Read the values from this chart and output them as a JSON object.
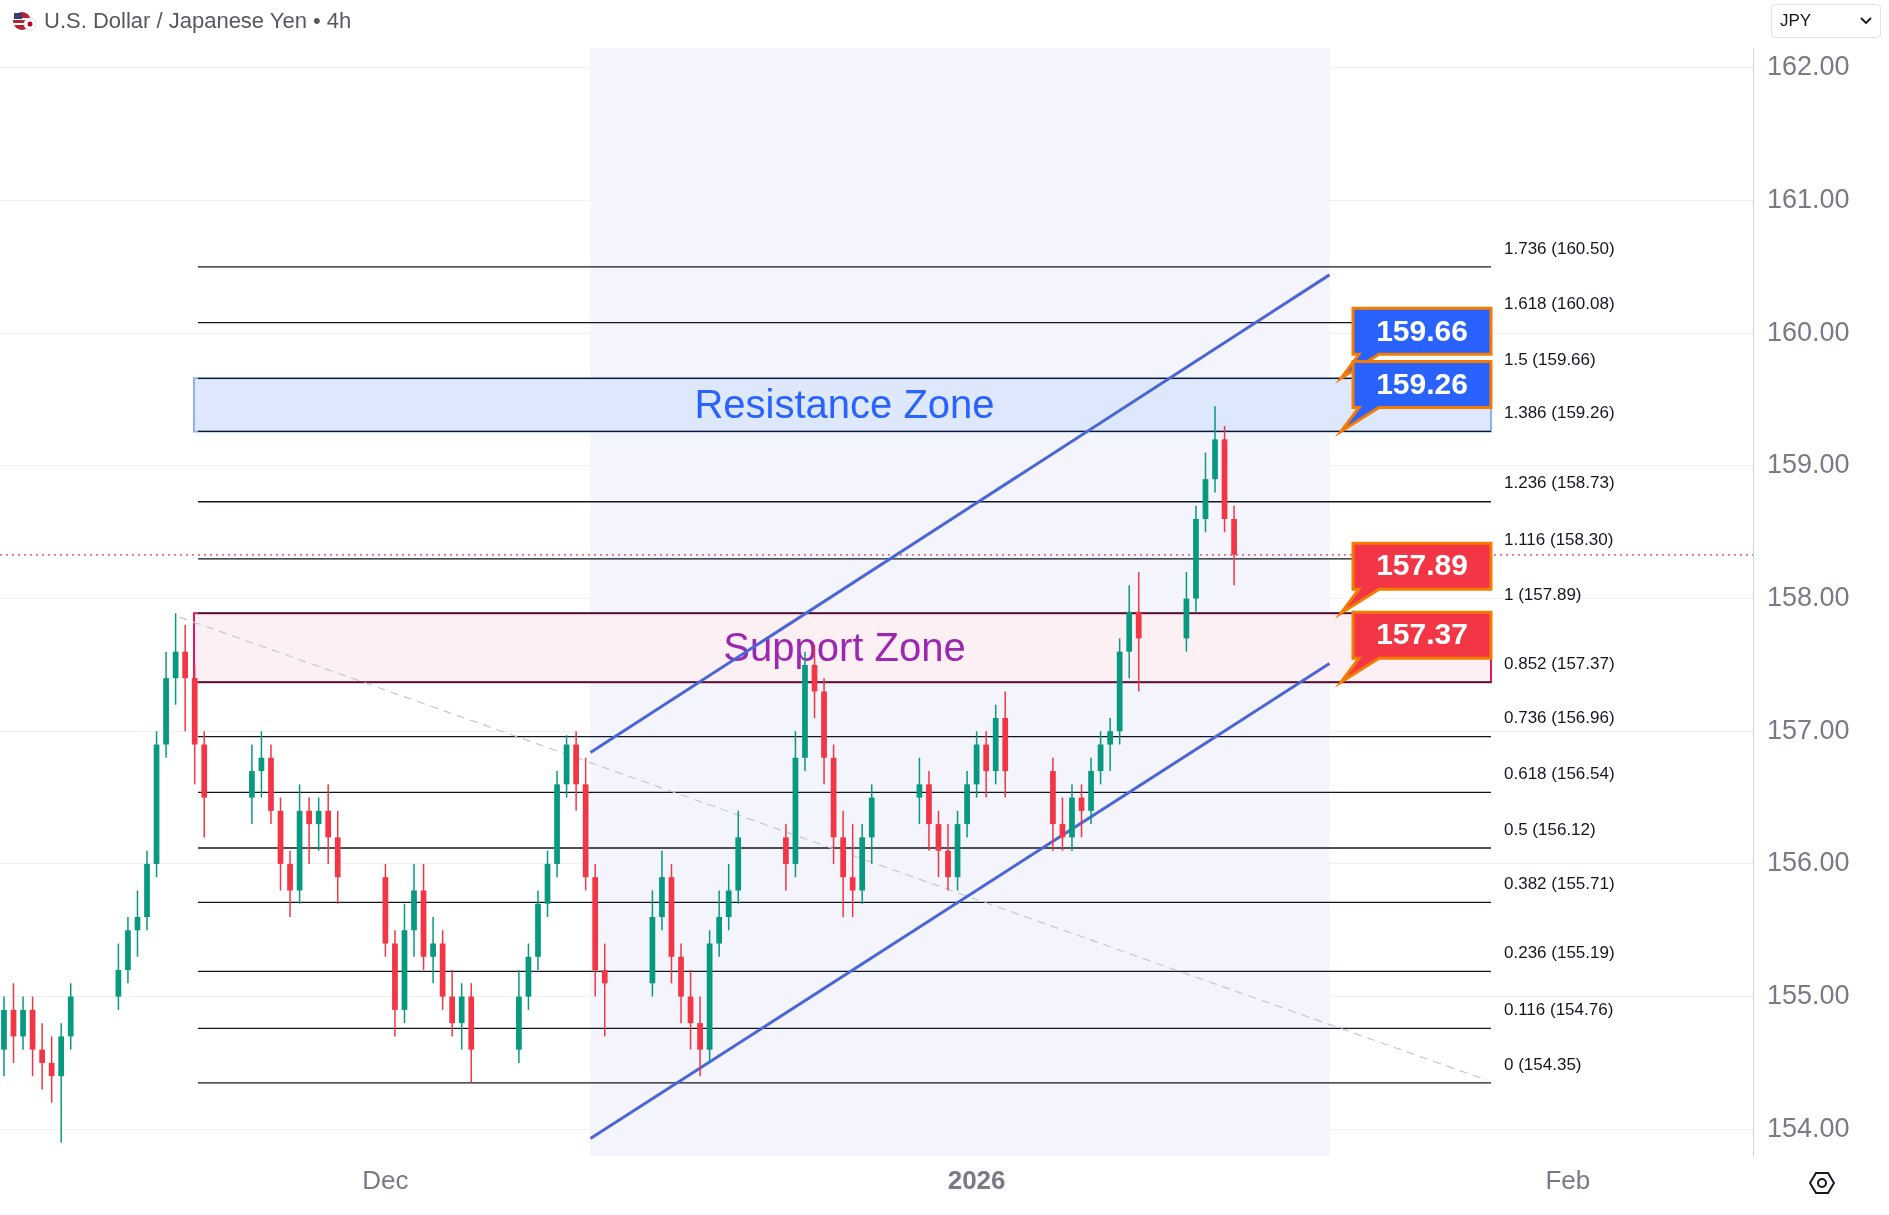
{
  "chart_data": {
    "type": "candlestick",
    "title": "U.S. Dollar / Japanese Yen • 4h",
    "x": [
      "2025-11-11T00:00",
      "2025-11-11T12:00",
      "2025-11-12T00:00",
      "2025-11-12T12:00",
      "2025-11-13T00:00",
      "2025-11-13T12:00",
      "2025-11-14T00:00",
      "2025-11-14T12:00",
      "2025-11-17T00:00",
      "2025-11-17T12:00",
      "2025-11-18T00:00",
      "2025-11-18T12:00",
      "2025-11-19T00:00",
      "2025-11-19T12:00",
      "2025-11-20T00:00",
      "2025-11-20T12:00",
      "2025-11-21T00:00",
      "2025-11-21T12:00",
      "2025-11-24T00:00",
      "2025-11-24T12:00",
      "2025-11-25T00:00",
      "2025-11-25T12:00",
      "2025-11-26T00:00",
      "2025-11-26T12:00",
      "2025-11-27T00:00",
      "2025-11-27T12:00",
      "2025-11-28T00:00",
      "2025-11-28T12:00",
      "2025-12-01T00:00",
      "2025-12-01T12:00",
      "2025-12-02T00:00",
      "2025-12-02T12:00",
      "2025-12-03T00:00",
      "2025-12-03T12:00",
      "2025-12-04T00:00",
      "2025-12-04T12:00",
      "2025-12-05T00:00",
      "2025-12-05T12:00",
      "2025-12-08T00:00",
      "2025-12-08T12:00",
      "2025-12-09T00:00",
      "2025-12-09T12:00",
      "2025-12-10T00:00",
      "2025-12-10T12:00",
      "2025-12-11T00:00",
      "2025-12-11T12:00",
      "2025-12-12T00:00",
      "2025-12-12T12:00",
      "2025-12-15T00:00",
      "2025-12-15T12:00",
      "2025-12-16T00:00",
      "2025-12-16T12:00",
      "2025-12-17T00:00",
      "2025-12-17T12:00",
      "2025-12-18T00:00",
      "2025-12-18T12:00",
      "2025-12-19T00:00",
      "2025-12-19T12:00",
      "2025-12-22T00:00",
      "2025-12-22T12:00",
      "2025-12-23T00:00",
      "2025-12-23T12:00",
      "2025-12-24T00:00",
      "2025-12-24T12:00",
      "2025-12-25T00:00",
      "2025-12-25T12:00",
      "2025-12-26T00:00",
      "2025-12-26T12:00",
      "2025-12-29T00:00",
      "2025-12-29T12:00",
      "2025-12-30T00:00",
      "2025-12-30T12:00",
      "2025-12-31T00:00",
      "2025-12-31T12:00",
      "2026-01-01T00:00",
      "2026-01-01T12:00",
      "2026-01-02T00:00",
      "2026-01-02T12:00",
      "2026-01-05T00:00",
      "2026-01-05T12:00",
      "2026-01-06T00:00",
      "2026-01-06T12:00",
      "2026-01-07T00:00",
      "2026-01-07T12:00",
      "2026-01-08T00:00",
      "2026-01-08T12:00",
      "2026-01-09T00:00",
      "2026-01-09T12:00",
      "2026-01-12T00:00",
      "2026-01-12T12:00",
      "2026-01-13T00:00",
      "2026-01-13T12:00",
      "2026-01-14T00:00",
      "2026-01-14T12:00"
    ],
    "ohlc": [
      [
        154.6,
        155.0,
        154.4,
        154.9
      ],
      [
        154.9,
        155.1,
        154.5,
        154.7
      ],
      [
        154.7,
        155.0,
        154.6,
        154.9
      ],
      [
        154.9,
        155.0,
        154.4,
        154.6
      ],
      [
        154.6,
        154.8,
        154.3,
        154.5
      ],
      [
        154.5,
        154.7,
        154.2,
        154.4
      ],
      [
        154.4,
        154.8,
        153.9,
        154.7
      ],
      [
        154.7,
        155.1,
        154.6,
        155.0
      ],
      [
        155.0,
        155.4,
        154.9,
        155.2
      ],
      [
        155.2,
        155.6,
        155.1,
        155.5
      ],
      [
        155.5,
        155.8,
        155.3,
        155.6
      ],
      [
        155.6,
        156.1,
        155.5,
        156.0
      ],
      [
        156.0,
        157.0,
        155.9,
        156.9
      ],
      [
        156.9,
        157.6,
        156.8,
        157.4
      ],
      [
        157.4,
        157.89,
        157.2,
        157.6
      ],
      [
        157.6,
        157.8,
        157.0,
        157.4
      ],
      [
        157.4,
        157.5,
        156.6,
        156.9
      ],
      [
        156.9,
        157.0,
        156.2,
        156.5
      ],
      [
        156.5,
        156.9,
        156.3,
        156.7
      ],
      [
        156.7,
        157.0,
        156.5,
        156.8
      ],
      [
        156.8,
        156.9,
        156.3,
        156.4
      ],
      [
        156.4,
        156.5,
        155.8,
        156.0
      ],
      [
        156.0,
        156.1,
        155.6,
        155.8
      ],
      [
        155.8,
        156.6,
        155.7,
        156.4
      ],
      [
        156.4,
        156.5,
        156.0,
        156.3
      ],
      [
        156.3,
        156.5,
        156.1,
        156.4
      ],
      [
        156.4,
        156.6,
        156.0,
        156.2
      ],
      [
        156.2,
        156.4,
        155.7,
        155.9
      ],
      [
        155.9,
        156.0,
        155.3,
        155.4
      ],
      [
        155.4,
        155.5,
        154.7,
        154.9
      ],
      [
        154.9,
        155.7,
        154.8,
        155.5
      ],
      [
        155.5,
        156.0,
        155.3,
        155.8
      ],
      [
        155.8,
        156.0,
        155.2,
        155.3
      ],
      [
        155.3,
        155.6,
        155.1,
        155.4
      ],
      [
        155.4,
        155.5,
        154.9,
        155.0
      ],
      [
        155.0,
        155.2,
        154.7,
        154.8
      ],
      [
        154.8,
        155.1,
        154.6,
        155.0
      ],
      [
        155.0,
        155.1,
        154.35,
        154.6
      ],
      [
        154.6,
        155.2,
        154.5,
        155.0
      ],
      [
        155.0,
        155.4,
        154.9,
        155.3
      ],
      [
        155.3,
        155.8,
        155.2,
        155.7
      ],
      [
        155.7,
        156.1,
        155.6,
        156.0
      ],
      [
        156.0,
        156.7,
        155.9,
        156.6
      ],
      [
        156.6,
        156.97,
        156.5,
        156.9
      ],
      [
        156.9,
        157.0,
        156.4,
        156.6
      ],
      [
        156.6,
        156.8,
        155.8,
        155.9
      ],
      [
        155.9,
        156.0,
        155.0,
        155.2
      ],
      [
        155.2,
        155.4,
        154.7,
        155.1
      ],
      [
        155.1,
        155.8,
        155.0,
        155.6
      ],
      [
        155.6,
        156.1,
        155.5,
        155.9
      ],
      [
        155.9,
        156.0,
        155.1,
        155.3
      ],
      [
        155.3,
        155.4,
        154.8,
        155.0
      ],
      [
        155.0,
        155.2,
        154.6,
        154.8
      ],
      [
        154.8,
        155.0,
        154.4,
        154.6
      ],
      [
        154.6,
        155.5,
        154.5,
        155.4
      ],
      [
        155.4,
        155.8,
        155.3,
        155.6
      ],
      [
        155.6,
        156.0,
        155.5,
        155.8
      ],
      [
        155.8,
        156.4,
        155.7,
        156.2
      ],
      [
        156.2,
        156.3,
        155.8,
        156.0
      ],
      [
        156.0,
        157.0,
        155.9,
        156.8
      ],
      [
        156.8,
        157.6,
        156.7,
        157.5
      ],
      [
        157.5,
        157.65,
        157.1,
        157.3
      ],
      [
        157.3,
        157.4,
        156.6,
        156.8
      ],
      [
        156.8,
        156.9,
        156.0,
        156.2
      ],
      [
        156.2,
        156.4,
        155.6,
        155.9
      ],
      [
        155.9,
        156.3,
        155.6,
        155.8
      ],
      [
        155.8,
        156.3,
        155.7,
        156.2
      ],
      [
        156.2,
        156.6,
        156.0,
        156.5
      ],
      [
        156.5,
        156.8,
        156.3,
        156.6
      ],
      [
        156.6,
        156.7,
        156.1,
        156.3
      ],
      [
        156.3,
        156.4,
        155.9,
        156.1
      ],
      [
        156.1,
        156.3,
        155.8,
        155.9
      ],
      [
        155.9,
        156.4,
        155.8,
        156.3
      ],
      [
        156.3,
        156.7,
        156.2,
        156.6
      ],
      [
        156.6,
        157.0,
        156.5,
        156.9
      ],
      [
        156.9,
        157.0,
        156.5,
        156.7
      ],
      [
        156.7,
        157.2,
        156.6,
        157.1
      ],
      [
        157.1,
        157.3,
        156.5,
        156.7
      ],
      [
        156.7,
        156.8,
        156.1,
        156.3
      ],
      [
        156.3,
        156.5,
        156.1,
        156.2
      ],
      [
        156.2,
        156.6,
        156.1,
        156.5
      ],
      [
        156.5,
        156.6,
        156.2,
        156.4
      ],
      [
        156.4,
        156.8,
        156.3,
        156.7
      ],
      [
        156.7,
        157.0,
        156.6,
        156.9
      ],
      [
        156.9,
        157.1,
        156.7,
        157.0
      ],
      [
        157.0,
        157.7,
        156.9,
        157.6
      ],
      [
        157.6,
        158.1,
        157.4,
        157.9
      ],
      [
        157.9,
        158.2,
        157.3,
        157.7
      ],
      [
        157.7,
        158.2,
        157.6,
        158.0
      ],
      [
        158.0,
        158.7,
        157.9,
        158.6
      ],
      [
        158.6,
        159.1,
        158.5,
        158.9
      ],
      [
        158.9,
        159.45,
        158.8,
        159.2
      ],
      [
        159.2,
        159.3,
        158.5,
        158.6
      ],
      [
        158.6,
        158.7,
        158.1,
        158.33
      ]
    ],
    "colors": [
      "#089981",
      "#f23645",
      "#089981",
      "#f23645",
      "#f23645",
      "#f23645",
      "#089981",
      "#089981",
      "#089981",
      "#089981",
      "#089981",
      "#089981",
      "#089981",
      "#089981",
      "#089981",
      "#f23645",
      "#f23645",
      "#f23645",
      "#089981",
      "#089981",
      "#f23645",
      "#f23645",
      "#f23645",
      "#089981",
      "#f23645",
      "#089981",
      "#f23645",
      "#f23645",
      "#f23645",
      "#f23645",
      "#089981",
      "#089981",
      "#f23645",
      "#089981",
      "#f23645",
      "#f23645",
      "#089981",
      "#f23645",
      "#089981",
      "#089981",
      "#089981",
      "#089981",
      "#089981",
      "#089981",
      "#f23645",
      "#f23645",
      "#f23645",
      "#f23645",
      "#089981",
      "#089981",
      "#f23645",
      "#f23645",
      "#f23645",
      "#f23645",
      "#089981",
      "#089981",
      "#089981",
      "#089981",
      "#f23645",
      "#089981",
      "#089981",
      "#f23645",
      "#f23645",
      "#f23645",
      "#f23645",
      "#f23645",
      "#089981",
      "#089981",
      "#089981",
      "#f23645",
      "#f23645",
      "#f23645",
      "#089981",
      "#089981",
      "#089981",
      "#f23645",
      "#089981",
      "#f23645",
      "#f23645",
      "#f23645",
      "#089981",
      "#f23645",
      "#089981",
      "#089981",
      "#089981",
      "#089981",
      "#089981",
      "#f23645",
      "#089981",
      "#089981",
      "#089981",
      "#089981",
      "#f23645",
      "#f23645"
    ],
    "series": [
      {
        "type": "line",
        "color": "#4a66d6",
        "x": [
          "2025-12-11T18:00",
          "2026-01-19T12:00"
        ],
        "values": [
          156.84,
          160.44
        ]
      },
      {
        "type": "line",
        "color": "#4a66d6",
        "x": [
          "2025-12-11T18:00",
          "2026-01-19T12:00"
        ],
        "values": [
          153.93,
          157.51
        ]
      },
      {
        "type": "line",
        "color": "#c8c8c8",
        "line_style": "dashed",
        "x": [
          "2025-11-20T05:00",
          "2026-01-27T18:00"
        ],
        "values": [
          157.86,
          154.37
        ]
      }
    ],
    "xlim": [
      "2025-11-10T19:00",
      "2026-02-10T17:00"
    ],
    "xticks": [
      {
        "value": "2025-12-01",
        "label": "Dec"
      },
      {
        "value": "2026-01-01",
        "label": "2026"
      },
      {
        "value": "2026-02-01",
        "label": "Feb"
      }
    ],
    "ylim": [
      153.8,
      162.15
    ],
    "yticks": [
      {
        "value": 154,
        "label": "154.00"
      },
      {
        "value": 155,
        "label": "155.00"
      },
      {
        "value": 156,
        "label": "156.00"
      },
      {
        "value": 157,
        "label": "157.00"
      },
      {
        "value": 158,
        "label": "158.00"
      },
      {
        "value": 159,
        "label": "159.00"
      },
      {
        "value": 160,
        "label": "160.00"
      },
      {
        "value": 161,
        "label": "161.00"
      },
      {
        "value": 162,
        "label": "162.00"
      }
    ],
    "grid": "y",
    "legend": false,
    "bands": [
      {
        "axis": "x",
        "from": "2025-12-11T18:00",
        "to": "2026-01-19T12:00",
        "color": "#f4f4fc"
      },
      {
        "axis": "y",
        "from": 159.26,
        "to": 159.66,
        "label": "Resistance Zone",
        "color": "#dde8fc"
      },
      {
        "axis": "y",
        "from": 157.37,
        "to": 157.89,
        "label": "Support Zone",
        "color": "#fcf0f5"
      }
    ],
    "ref_lines": [
      {
        "axis": "y",
        "value": 160.5,
        "label": "1.736 (160.50)",
        "color": "#131722"
      },
      {
        "axis": "y",
        "value": 160.08,
        "label": "1.618 (160.08)",
        "color": "#131722"
      },
      {
        "axis": "y",
        "value": 159.66,
        "label": "1.5 (159.66)",
        "color": "#131722"
      },
      {
        "axis": "y",
        "value": 159.26,
        "label": "1.386 (159.26)",
        "color": "#131722"
      },
      {
        "axis": "y",
        "value": 158.73,
        "label": "1.236 (158.73)",
        "color": "#131722"
      },
      {
        "axis": "y",
        "value": 158.3,
        "label": "1.116 (158.30)",
        "color": "#131722"
      },
      {
        "axis": "y",
        "value": 157.89,
        "label": "1 (157.89)",
        "color": "#131722"
      },
      {
        "axis": "y",
        "value": 157.37,
        "label": "0.852 (157.37)",
        "color": "#131722"
      },
      {
        "axis": "y",
        "value": 156.96,
        "label": "0.736 (156.96)",
        "color": "#131722"
      },
      {
        "axis": "y",
        "value": 156.54,
        "label": "0.618 (156.54)",
        "color": "#131722"
      },
      {
        "axis": "y",
        "value": 156.12,
        "label": "0.5 (156.12)",
        "color": "#131722"
      },
      {
        "axis": "y",
        "value": 155.71,
        "label": "0.382 (155.71)",
        "color": "#131722"
      },
      {
        "axis": "y",
        "value": 155.19,
        "label": "0.236 (155.19)",
        "color": "#131722"
      },
      {
        "axis": "y",
        "value": 154.76,
        "label": "0.116 (154.76)",
        "color": "#131722"
      },
      {
        "axis": "y",
        "value": 154.35,
        "label": "0 (154.35)",
        "color": "#131722"
      },
      {
        "axis": "y",
        "value": 158.33,
        "color": "#f23645",
        "line_style": "dotted"
      }
    ],
    "annotations": [
      {
        "text": "159.66",
        "y": 159.66
      },
      {
        "text": "159.26",
        "y": 159.26
      },
      {
        "text": "157.89",
        "y": 157.89
      },
      {
        "text": "157.37",
        "y": 157.37
      },
      "JPY"
    ]
  }
}
